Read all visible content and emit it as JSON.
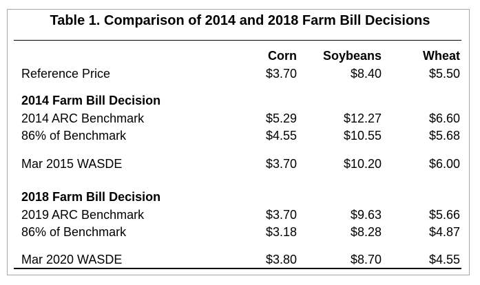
{
  "title": "Table 1. Comparison of 2014 and 2018 Farm Bill Decisions",
  "columns": [
    "Corn",
    "Soybeans",
    "Wheat"
  ],
  "reference": {
    "label": "Reference Price",
    "values": [
      "$3.70",
      "$8.40",
      "$5.50"
    ]
  },
  "section_2014": {
    "heading": "2014 Farm Bill Decision",
    "rows": [
      {
        "label": "2014 ARC Benchmark",
        "values": [
          "$5.29",
          "$12.27",
          "$6.60"
        ]
      },
      {
        "label": "86% of Benchmark",
        "values": [
          "$4.55",
          "$10.55",
          "$5.68"
        ]
      },
      {
        "label": "Mar 2015 WASDE",
        "values": [
          "$3.70",
          "$10.20",
          "$6.00"
        ]
      }
    ]
  },
  "section_2018": {
    "heading": "2018 Farm Bill Decision",
    "rows": [
      {
        "label": "2019 ARC Benchmark",
        "values": [
          "$3.70",
          "$9.63",
          "$5.66"
        ]
      },
      {
        "label": "86% of Benchmark",
        "values": [
          "$3.18",
          "$8.28",
          "$4.87"
        ]
      },
      {
        "label": "Mar 2020 WASDE",
        "values": [
          "$3.80",
          "$8.70",
          "$4.55"
        ]
      }
    ]
  }
}
